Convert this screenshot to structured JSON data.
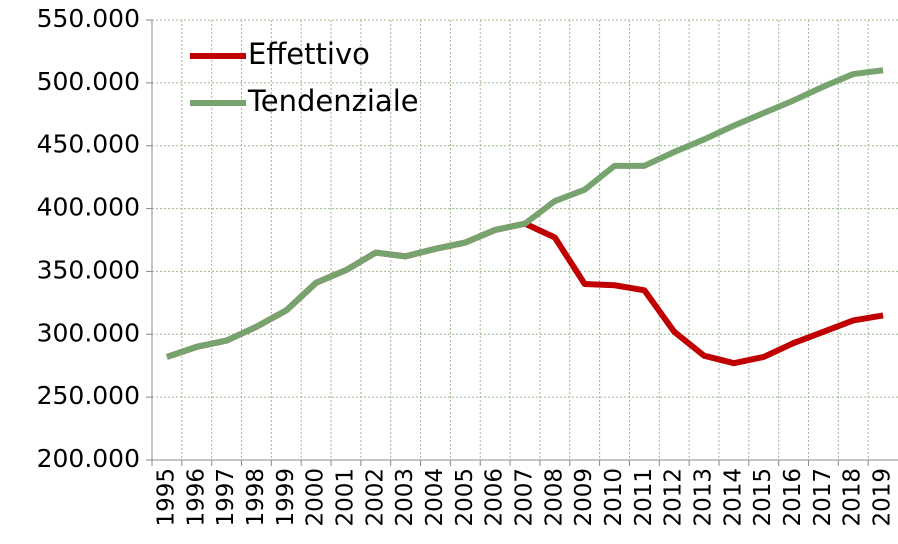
{
  "chart_data": {
    "type": "line",
    "categories": [
      "1995",
      "1996",
      "1997",
      "1998",
      "1999",
      "2000",
      "2001",
      "2002",
      "2003",
      "2004",
      "2005",
      "2006",
      "2007",
      "2008",
      "2009",
      "2010",
      "2011",
      "2012",
      "2013",
      "2014",
      "2015",
      "2016",
      "2017",
      "2018",
      "2019"
    ],
    "series": [
      {
        "name": "Effettivo",
        "color": "#c00000",
        "values": [
          282000,
          290000,
          295000,
          306000,
          319000,
          341000,
          351000,
          365000,
          362000,
          368000,
          373000,
          383000,
          388000,
          377000,
          340000,
          339000,
          335000,
          302000,
          283000,
          277000,
          282000,
          293000,
          302000,
          311000,
          315000
        ]
      },
      {
        "name": "Tendenziale",
        "color": "#77a36e",
        "values": [
          282000,
          290000,
          295000,
          306000,
          319000,
          341000,
          351000,
          365000,
          362000,
          368000,
          373000,
          383000,
          388000,
          406000,
          415000,
          434000,
          434000,
          445000,
          455000,
          466000,
          476000,
          486000,
          497000,
          507000,
          510000
        ]
      }
    ],
    "ylim": [
      200000,
      550000
    ],
    "yticks": [
      {
        "value": 200000,
        "label": "200.000"
      },
      {
        "value": 250000,
        "label": "250.000"
      },
      {
        "value": 300000,
        "label": "300.000"
      },
      {
        "value": 350000,
        "label": "350.000"
      },
      {
        "value": 400000,
        "label": "400.000"
      },
      {
        "value": 450000,
        "label": "450.000"
      },
      {
        "value": 500000,
        "label": "500.000"
      },
      {
        "value": 550000,
        "label": "550.000"
      }
    ],
    "grid": true,
    "legend": "upper left"
  }
}
